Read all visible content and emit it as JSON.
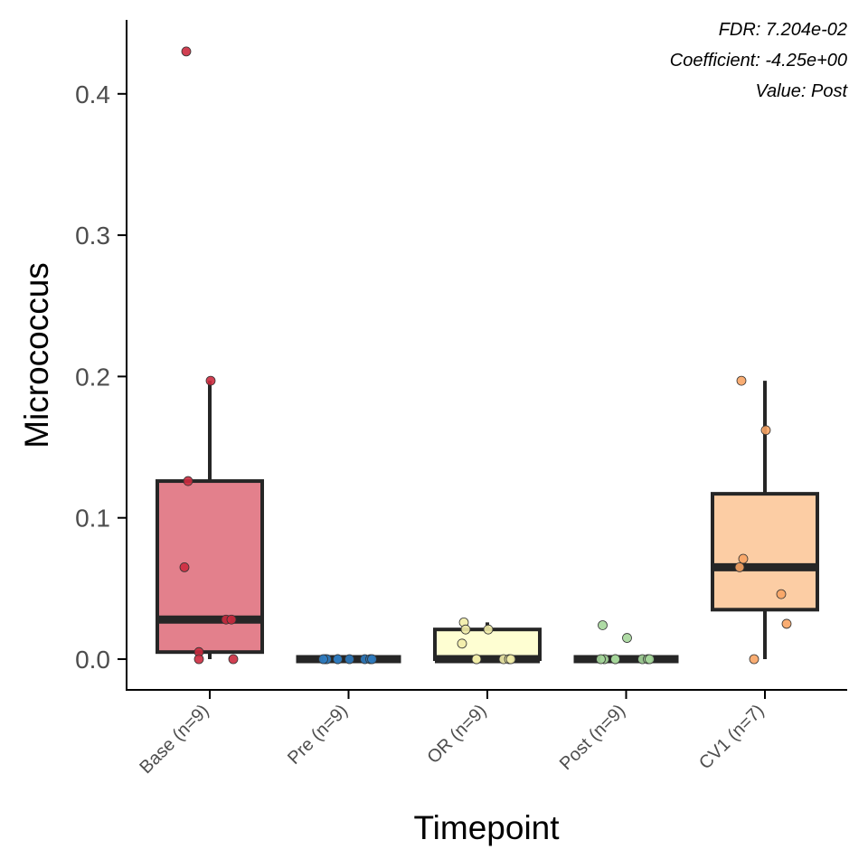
{
  "chart_data": {
    "type": "box",
    "xlabel": "Timepoint",
    "ylabel": "Micrococcus",
    "ylim": [
      -0.022,
      0.45
    ],
    "yticks": [
      0.0,
      0.1,
      0.2,
      0.3,
      0.4
    ],
    "ytick_labels": [
      "0.0",
      "0.1",
      "0.2",
      "0.3",
      "0.4"
    ],
    "annotations": [
      "FDR: 7.204e-02",
      "Coefficient: -4.25e+00",
      "Value: Post"
    ],
    "grid": false,
    "legend": "none",
    "categories": [
      "Base (n=9)",
      "Pre (n=9)",
      "OR (n=9)",
      "Post (n=9)",
      "CV1 (n=7)"
    ],
    "groups": [
      {
        "label": "Base (n=9)",
        "fill": "#e3808c",
        "point_color": "#cc2b3f",
        "whisker_low": 0.0,
        "q1": 0.005,
        "median": 0.028,
        "q3": 0.126,
        "whisker_high": 0.197,
        "points": [
          0.43,
          0.197,
          0.126,
          0.065,
          0.028,
          0.028,
          0.005,
          0.0,
          0.0
        ]
      },
      {
        "label": "Pre (n=9)",
        "fill": "#9ec4e0",
        "point_color": "#2f7bbf",
        "whisker_low": 0.0,
        "q1": 0.0,
        "median": 0.0,
        "q3": 0.0,
        "whisker_high": 0.0,
        "points": [
          0.0,
          0.0,
          0.0,
          0.0,
          0.0,
          0.0,
          0.0,
          0.0,
          0.0
        ]
      },
      {
        "label": "OR (n=9)",
        "fill": "#fefed2",
        "point_color": "#f2eda8",
        "whisker_low": 0.0,
        "q1": 0.0,
        "median": 0.0,
        "q3": 0.021,
        "whisker_high": 0.026,
        "points": [
          0.026,
          0.021,
          0.021,
          0.011,
          0.0,
          0.0,
          0.0,
          0.0,
          0.0
        ]
      },
      {
        "label": "Post (n=9)",
        "fill": "#c8e6bf",
        "point_color": "#a6d79b",
        "whisker_low": 0.0,
        "q1": 0.0,
        "median": 0.0,
        "q3": 0.0,
        "whisker_high": 0.0,
        "points": [
          0.024,
          0.015,
          0.0,
          0.0,
          0.0,
          0.0,
          0.0,
          0.0,
          0.0
        ]
      },
      {
        "label": "CV1 (n=7)",
        "fill": "#fccda4",
        "point_color": "#f8a464",
        "whisker_low": 0.0,
        "q1": 0.035,
        "median": 0.065,
        "q3": 0.117,
        "whisker_high": 0.197,
        "points": [
          0.197,
          0.162,
          0.071,
          0.065,
          0.046,
          0.025,
          0.0
        ]
      }
    ]
  }
}
